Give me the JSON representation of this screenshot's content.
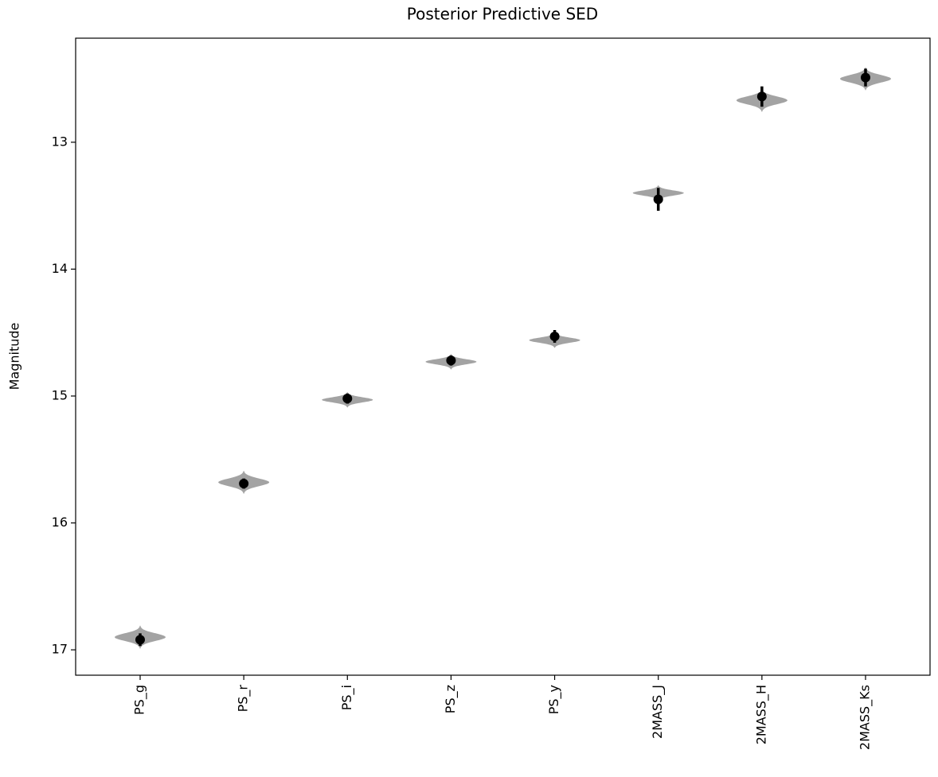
{
  "chart_data": {
    "type": "violin",
    "title": "Posterior Predictive SED",
    "ylabel": "Magnitude",
    "categories": [
      "PS_g",
      "PS_r",
      "PS_i",
      "PS_z",
      "PS_y",
      "2MASS_J",
      "2MASS_H",
      "2MASS_Ks"
    ],
    "violins": {
      "color": "#999999",
      "centers": [
        16.9,
        15.68,
        15.03,
        14.73,
        14.56,
        13.4,
        12.67,
        12.5
      ],
      "spreads": [
        0.03,
        0.03,
        0.02,
        0.02,
        0.02,
        0.02,
        0.03,
        0.03
      ]
    },
    "points": {
      "color": "#000000",
      "values": [
        16.92,
        15.69,
        15.02,
        14.72,
        14.53,
        13.45,
        12.64,
        12.49
      ],
      "errors": [
        0.05,
        0.04,
        0.04,
        0.04,
        0.05,
        0.09,
        0.08,
        0.07
      ]
    },
    "ylim": [
      17.2,
      12.18
    ],
    "yticks": [
      13,
      14,
      15,
      16,
      17
    ],
    "grid": false
  }
}
